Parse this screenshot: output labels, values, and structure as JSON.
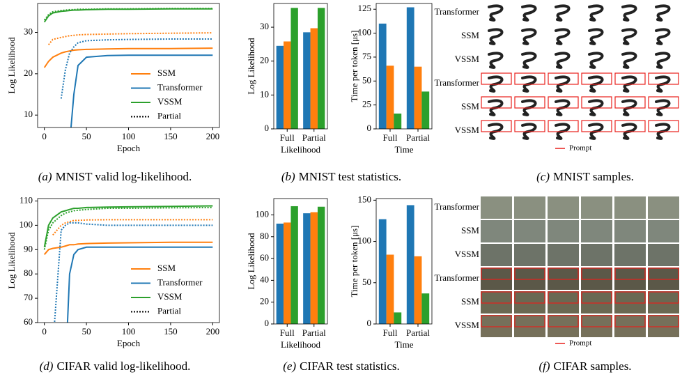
{
  "chart_data": [
    {
      "type": "line",
      "ylabel": "Log Likelihood",
      "xlabel": "Epoch",
      "x": [
        0,
        5,
        10,
        20,
        25,
        30,
        35,
        40,
        50,
        75,
        100,
        150,
        200
      ],
      "xlim": [
        -8,
        208
      ],
      "xticks": [
        0,
        50,
        100,
        150,
        200
      ],
      "ylim": [
        7,
        37
      ],
      "yticks": [
        10,
        20,
        30
      ],
      "series": [
        {
          "name": "SSM",
          "color": "#ff7f0e",
          "values": [
            21.5,
            23,
            24,
            25,
            25.3,
            25.5,
            25.7,
            25.8,
            25.9,
            26,
            26.1,
            26.1,
            26.2
          ]
        },
        {
          "name": "Transformer",
          "color": "#1f77b4",
          "values": [
            null,
            null,
            null,
            null,
            null,
            3,
            15,
            22,
            24,
            24.4,
            24.5,
            24.5,
            24.5
          ]
        },
        {
          "name": "VSSM",
          "color": "#2ca02c",
          "values": [
            32.5,
            34,
            34.7,
            35.1,
            35.2,
            35.3,
            35.4,
            35.4,
            35.5,
            35.6,
            35.6,
            35.7,
            35.7
          ]
        }
      ],
      "partial_name": "Partial",
      "partial_style": "dotted",
      "partial_series": [
        {
          "color": "#ff7f0e",
          "values": [
            null,
            27,
            28.3,
            28.8,
            29,
            29.2,
            29.3,
            29.4,
            29.5,
            29.6,
            29.7,
            29.8,
            29.9
          ]
        },
        {
          "color": "#1f77b4",
          "values": [
            null,
            null,
            null,
            14,
            21,
            25,
            26.5,
            27.5,
            28,
            28.2,
            28.3,
            28.4,
            28.4
          ]
        },
        {
          "color": "#2ca02c",
          "values": [
            33,
            34.3,
            35,
            35.3,
            35.4,
            35.5,
            35.5,
            35.6,
            35.6,
            35.7,
            35.7,
            35.8,
            35.8
          ]
        }
      ]
    },
    {
      "type": "bar",
      "ylabel": "Log Likelihood",
      "xlabel": "Likelihood",
      "categories": [
        "Full",
        "Partial"
      ],
      "ylim": [
        0,
        37
      ],
      "yticks": [
        0,
        10,
        20,
        30
      ],
      "series": [
        {
          "color": "#1f77b4",
          "values": [
            24.5,
            28.5
          ]
        },
        {
          "color": "#ff7f0e",
          "values": [
            25.8,
            29.7
          ]
        },
        {
          "color": "#2ca02c",
          "values": [
            35.7,
            35.7
          ]
        }
      ]
    },
    {
      "type": "bar",
      "ylabel": "Time per token [μs]",
      "xlabel": "Time",
      "categories": [
        "Full",
        "Partial"
      ],
      "ylim": [
        0,
        131
      ],
      "yticks": [
        0,
        25,
        50,
        75,
        100,
        125
      ],
      "series": [
        {
          "color": "#1f77b4",
          "values": [
            110,
            127
          ]
        },
        {
          "color": "#ff7f0e",
          "values": [
            66,
            65
          ]
        },
        {
          "color": "#2ca02c",
          "values": [
            16,
            39
          ]
        }
      ]
    },
    {
      "type": "line",
      "ylabel": "Log Likelihood",
      "xlabel": "Epoch",
      "x": [
        0,
        5,
        10,
        20,
        25,
        30,
        35,
        40,
        50,
        75,
        100,
        150,
        200
      ],
      "xlim": [
        -8,
        208
      ],
      "xticks": [
        0,
        50,
        100,
        150,
        200
      ],
      "ylim": [
        60,
        111
      ],
      "yticks": [
        60,
        70,
        80,
        90,
        100,
        110
      ],
      "series": [
        {
          "name": "SSM",
          "color": "#ff7f0e",
          "values": [
            88,
            90,
            90.5,
            91,
            91.5,
            92,
            92,
            92.3,
            92.5,
            92.7,
            92.8,
            93,
            93
          ]
        },
        {
          "name": "Transformer",
          "color": "#1f77b4",
          "values": [
            null,
            null,
            null,
            null,
            40,
            80,
            88,
            90,
            91,
            91,
            91,
            91,
            91
          ]
        },
        {
          "name": "VSSM",
          "color": "#2ca02c",
          "values": [
            91,
            100,
            103,
            105.5,
            106,
            106.5,
            107,
            107,
            107.3,
            107.5,
            107.6,
            107.8,
            108
          ]
        }
      ],
      "partial_name": "Partial",
      "partial_style": "dotted",
      "partial_series": [
        {
          "color": "#ff7f0e",
          "values": [
            null,
            null,
            96,
            100,
            101,
            101.5,
            102,
            102,
            102.2,
            102.3,
            102.3,
            102.3,
            102.3
          ]
        },
        {
          "color": "#1f77b4",
          "values": [
            null,
            null,
            50,
            98,
            100,
            101,
            101,
            101,
            100.5,
            100,
            100,
            100,
            100
          ]
        },
        {
          "color": "#2ca02c",
          "values": [
            90,
            98,
            101,
            104,
            105,
            105.5,
            106,
            106.2,
            106.5,
            107,
            107,
            107.2,
            107.3
          ]
        }
      ]
    },
    {
      "type": "bar",
      "ylabel": "Log Likelihood",
      "xlabel": "Likelihood",
      "categories": [
        "Full",
        "Partial"
      ],
      "ylim": [
        0,
        115
      ],
      "yticks": [
        0,
        20,
        40,
        60,
        80,
        100
      ],
      "series": [
        {
          "color": "#1f77b4",
          "values": [
            92,
            101.5
          ]
        },
        {
          "color": "#ff7f0e",
          "values": [
            93,
            102.5
          ]
        },
        {
          "color": "#2ca02c",
          "values": [
            108,
            107.5
          ]
        }
      ]
    },
    {
      "type": "bar",
      "ylabel": "Time per token [μs]",
      "xlabel": "Time",
      "categories": [
        "Full",
        "Partial"
      ],
      "ylim": [
        0,
        152
      ],
      "yticks": [
        0,
        50,
        100,
        150
      ],
      "series": [
        {
          "color": "#1f77b4",
          "values": [
            127,
            144
          ]
        },
        {
          "color": "#ff7f0e",
          "values": [
            84,
            82
          ]
        },
        {
          "color": "#2ca02c",
          "values": [
            14,
            37
          ]
        }
      ]
    }
  ],
  "samples": [
    {
      "row_labels": [
        "Transformer",
        "SSM",
        "VSSM",
        "Transformer",
        "SSM",
        "VSSM"
      ],
      "legend": "Prompt"
    },
    {
      "row_labels": [
        "Transformer",
        "SSM",
        "VSSM",
        "Transformer",
        "SSM",
        "VSSM"
      ],
      "legend": "Prompt"
    }
  ],
  "captions": [
    {
      "tag": "(a)",
      "text": "MNIST valid log-likelihood."
    },
    {
      "tag": "(b)",
      "text": "MNIST test statistics."
    },
    {
      "tag": "(c)",
      "text": "MNIST samples."
    },
    {
      "tag": "(d)",
      "text": "CIFAR valid log-likelihood."
    },
    {
      "tag": "(e)",
      "text": "CIFAR test statistics."
    },
    {
      "tag": "(f)",
      "text": "CIFAR samples."
    }
  ]
}
